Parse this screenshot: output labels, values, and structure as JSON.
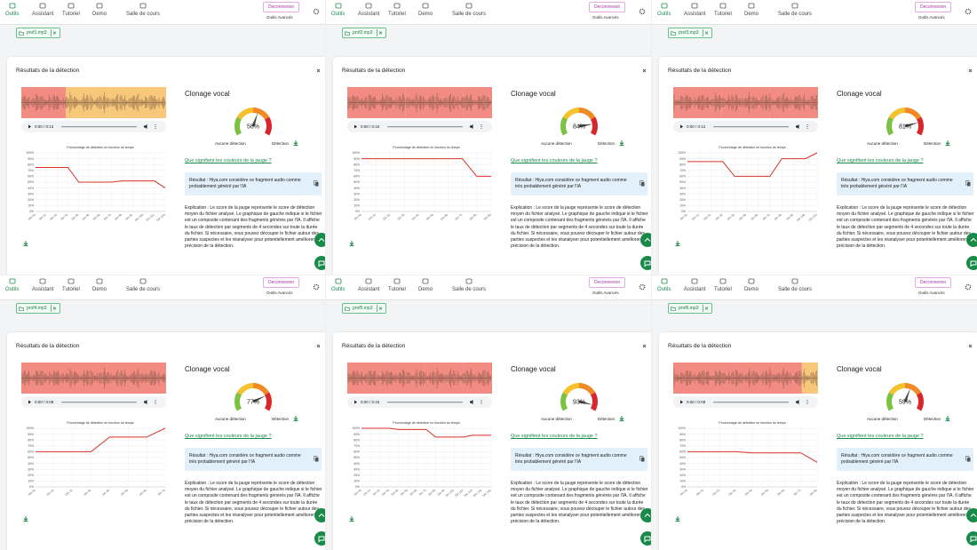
{
  "shared": {
    "nav": [
      "Outils",
      "Assistant",
      "Tutoriel",
      "Demo",
      "Salle de cours"
    ],
    "logout": "Deconnexion",
    "advanced": "Outils Avancés",
    "card_title": "Résultats de la détection",
    "section_title": "Clonage vocal",
    "gauge_low": "Aucune détection",
    "gauge_high": "Détection",
    "link": "Que signifient les couleurs de la jauge ?",
    "explanation": "Explication : Le score de la jauge représente le score de détection moyen du fichier analysé. Le graphique de gauche indique si le fichier est un composite contenant des fragments générés par l'IA. Il affiche le taux de détection par segments de 4 secondes sur toute la durée du fichier. Si nécessaire, vous pouvez découper le fichier autour des parties suspectes et les réanalyser pour potentiellement améliorer la précision de la détection.",
    "gauge_colors": [
      "#7cc242",
      "#f5c12e",
      "#f08a24",
      "#d9262b"
    ],
    "chart": {
      "title": "Pourcentage de détection en fonction du temps",
      "ylim": [
        0,
        100
      ],
      "yticks": [
        {
          "value": 0,
          "label": "0%"
        },
        {
          "value": 10,
          "label": "10%"
        },
        {
          "value": 20,
          "label": "20%"
        },
        {
          "value": 30,
          "label": "30%"
        },
        {
          "value": 40,
          "label": "40%"
        },
        {
          "value": 50,
          "label": "50%"
        },
        {
          "value": 60,
          "label": "60%"
        },
        {
          "value": 70,
          "label": "70%"
        },
        {
          "value": 80,
          "label": "80%"
        },
        {
          "value": 90,
          "label": "90%"
        },
        {
          "value": 100,
          "label": "100%"
        }
      ],
      "grid": true,
      "line_color": "#d93025"
    }
  },
  "panels": [
    {
      "file": "prof1.mp3",
      "time": "0:00 / 0:13",
      "score": 58,
      "score_label": "58%",
      "result": "Résultat : Hiya.com considère ce fragment audio comme probablement généré par l'IA",
      "segment_colors": [
        "#f28b82",
        "#f7c77a",
        "#f7c77a",
        "#f7c77a"
      ],
      "xticks": [
        "0m 0s",
        "0m 1s",
        "0m 2s",
        "0m 3s",
        "0m 4s",
        "0m 5s",
        "0m 6s",
        "0m 7s",
        "0m 8s",
        "0m 9s",
        "0m 10s",
        "0m 11s",
        "0m 12s"
      ],
      "values": [
        75,
        75,
        75,
        75,
        50,
        50,
        50,
        50,
        52,
        52,
        52,
        52,
        40
      ]
    },
    {
      "file": "prof2.mp3",
      "time": "0:00 / 0:10",
      "score": 84,
      "score_label": "84%",
      "result": "Résultat : Hiya.com considère ce fragment audio comme très probablement généré par l'IA",
      "segment_colors": [
        "#f28b82",
        "#f28b82",
        "#f28b82"
      ],
      "xticks": [
        "0m 0s",
        "0m 1s",
        "0m 2s",
        "0m 3s",
        "0m 4s",
        "0m 5s",
        "0m 6s",
        "0m 7s",
        "0m 8s",
        "0m 9s"
      ],
      "values": [
        90,
        90,
        90,
        90,
        90,
        90,
        90,
        90,
        60,
        60
      ]
    },
    {
      "file": "prof3.mp3",
      "time": "0:00 / 0:12",
      "score": 81,
      "score_label": "81%",
      "result": "Résultat : Hiya.com considère ce fragment audio comme très probablement généré par l'IA",
      "segment_colors": [
        "#f28b82",
        "#f28b82",
        "#f28b82"
      ],
      "xticks": [
        "0m 0s",
        "0m 1s",
        "0m 2s",
        "0m 3s",
        "0m 4s",
        "0m 5s",
        "0m 6s",
        "0m 7s",
        "0m 8s",
        "0m 9s",
        "0m 10s",
        "0m 11s"
      ],
      "values": [
        85,
        85,
        85,
        85,
        60,
        60,
        60,
        60,
        90,
        90,
        90,
        100
      ]
    },
    {
      "file": "prof4.mp3",
      "time": "0:00 / 0:08",
      "score": 77,
      "score_label": "77%",
      "result": "Résultat : Hiya.com considère ce fragment audio comme très probablement généré par l'IA",
      "segment_colors": [
        "#f28b82",
        "#f28b82"
      ],
      "xticks": [
        "0m 0s",
        "0m 1s",
        "0m 2s",
        "0m 3s",
        "0m 4s",
        "0m 5s",
        "0m 6s",
        "0m 7s"
      ],
      "values": [
        60,
        60,
        60,
        60,
        85,
        85,
        85,
        100
      ]
    },
    {
      "file": "prof5.mp3",
      "time": "0:00 / 0:15",
      "score": 93,
      "score_label": "93%",
      "result": "Résultat : Hiya.com considère ce fragment audio comme très probablement généré par l'IA",
      "segment_colors": [
        "#f28b82",
        "#f28b82",
        "#f28b82",
        "#f28b82"
      ],
      "xticks": [
        "0m 0s",
        "0m 1s",
        "0m 2s",
        "0m 3s",
        "0m 4s",
        "0m 5s",
        "0m 6s",
        "0m 7s",
        "0m 8s",
        "0m 9s",
        "0m 10s",
        "0m 11s",
        "0m 12s",
        "0m 13s",
        "0m 14s"
      ],
      "values": [
        100,
        100,
        100,
        100,
        98,
        98,
        98,
        98,
        85,
        85,
        85,
        85,
        88,
        88,
        88
      ]
    },
    {
      "file": "prof6.mp3",
      "time": "0:00 / 0:09",
      "score": 59,
      "score_label": "59%",
      "result": "Résultat : Hiya.com considère ce fragment audio comme probablement généré par l'IA",
      "segment_colors": [
        "#f28b82",
        "#f28b82",
        "#f7c77a"
      ],
      "xticks": [
        "0m 0s",
        "0m 1s",
        "0m 2s",
        "0m 3s",
        "0m 4s",
        "0m 5s",
        "0m 6s",
        "0m 7s",
        "0m 8s"
      ],
      "values": [
        60,
        60,
        60,
        60,
        58,
        58,
        58,
        58,
        42
      ]
    }
  ]
}
